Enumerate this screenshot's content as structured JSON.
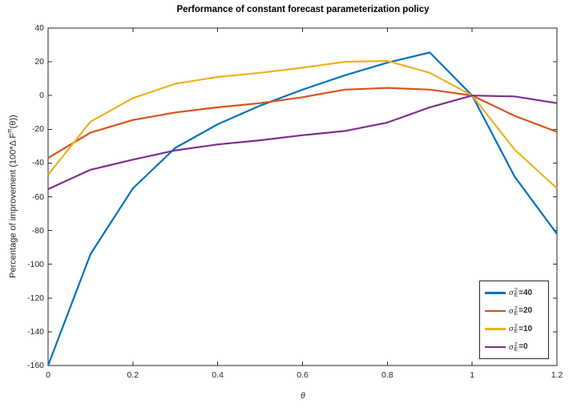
{
  "figure": {
    "title": "Performance of constant forecast parameterization policy",
    "xlabel": "θ",
    "ylabel_pre": "Percentage of improvement (100*Δ F",
    "ylabel_sup": "π",
    "ylabel_post": "(θ))"
  },
  "legend": {
    "position": "lower right",
    "items": [
      {
        "symbol": "σ",
        "sup": "2",
        "sub": "E",
        "eq": "=40",
        "color": "#0072BD"
      },
      {
        "symbol": "σ",
        "sup": "2",
        "sub": "E",
        "eq": "=20",
        "color": "#D95319"
      },
      {
        "symbol": "σ",
        "sup": "2",
        "sub": "E",
        "eq": "=10",
        "color": "#EDB120"
      },
      {
        "symbol": "σ",
        "sup": "2",
        "sub": "E",
        "eq": "=0",
        "color": "#7E2F8E"
      }
    ]
  },
  "chart_data": {
    "type": "line",
    "title": "Performance of constant forecast parameterization policy",
    "xlabel": "θ",
    "ylabel": "Percentage of improvement (100*Δ F^π(θ))",
    "xlim": [
      0,
      1.2
    ],
    "ylim": [
      -160,
      40
    ],
    "x_tick_labels": [
      "0",
      "0.2",
      "0.4",
      "0.6",
      "0.8",
      "1",
      "1.2"
    ],
    "x_ticks": [
      0,
      0.2,
      0.4,
      0.6,
      0.8,
      1,
      1.2
    ],
    "y_ticks": [
      40,
      20,
      0,
      -20,
      -40,
      -60,
      -80,
      -100,
      -120,
      -140,
      -160
    ],
    "grid": false,
    "legend_position": "lower right",
    "x": [
      0,
      0.1,
      0.2,
      0.3,
      0.4,
      0.5,
      0.6,
      0.7,
      0.8,
      0.9,
      1.0,
      1.1,
      1.2
    ],
    "series": [
      {
        "name": "σ_E^2=40",
        "color": "#0072BD",
        "values": [
          -160,
          -94,
          -55,
          -31,
          -17,
          -6,
          3.5,
          12,
          19.5,
          25.5,
          0,
          -48,
          -82
        ]
      },
      {
        "name": "σ_E^2=20",
        "color": "#D95319",
        "values": [
          -37,
          -22,
          -14.5,
          -10,
          -7,
          -4.5,
          -1,
          3.5,
          4.5,
          3.5,
          0,
          -12,
          -21.5
        ]
      },
      {
        "name": "σ_E^2=10",
        "color": "#EDB120",
        "values": [
          -47,
          -15.5,
          -1.5,
          7,
          11,
          13.5,
          16.5,
          20,
          20.5,
          13.5,
          0,
          -32,
          -55
        ]
      },
      {
        "name": "σ_E^2=0",
        "color": "#7E2F8E",
        "values": [
          -55.5,
          -44,
          -38,
          -32.5,
          -29,
          -26.5,
          -23.5,
          -21,
          -16,
          -7,
          0,
          -0.5,
          -4.5
        ]
      }
    ],
    "axis_color": "#262626",
    "line_width": 2.2
  }
}
